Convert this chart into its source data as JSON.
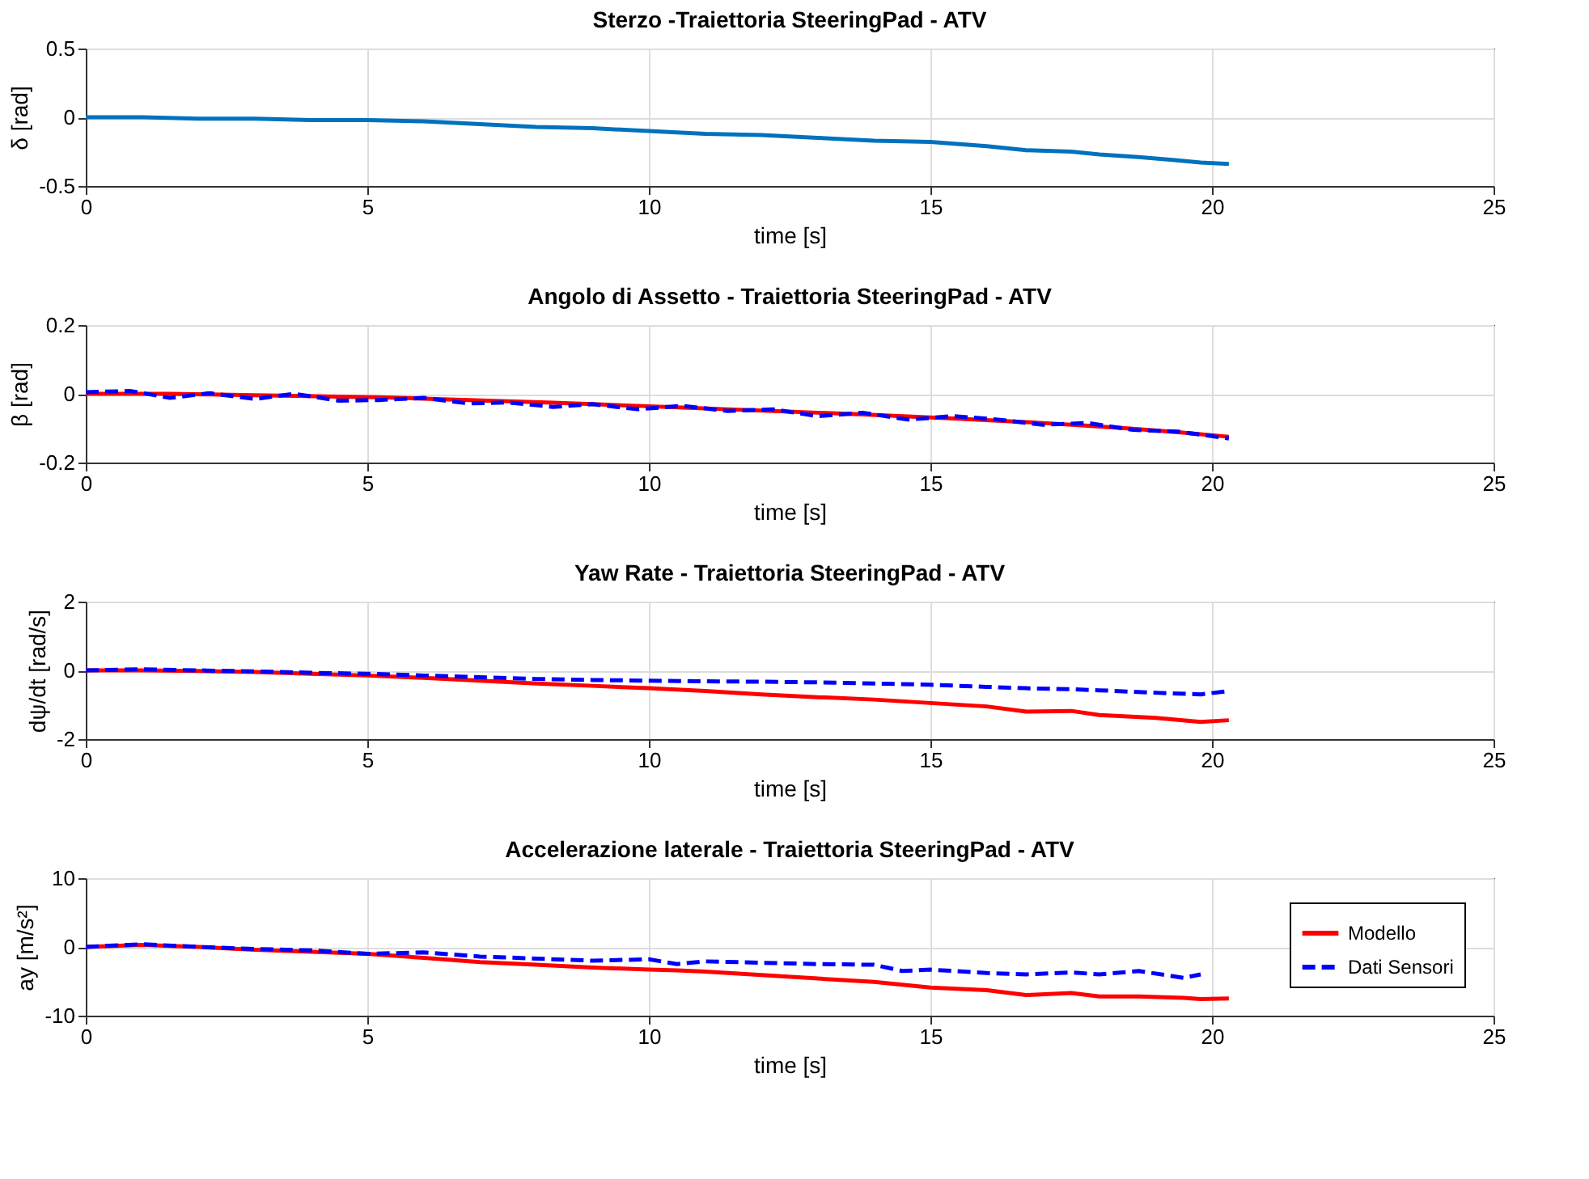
{
  "chart_data": [
    {
      "type": "line",
      "title": "Sterzo -Traiettoria SteeringPad - ATV",
      "xlabel": "time [s]",
      "ylabel": "δ [rad]",
      "xlim": [
        0,
        25
      ],
      "xticks": [
        0,
        5,
        10,
        15,
        20,
        25
      ],
      "ylim": [
        -0.5,
        0.5
      ],
      "yticks": [
        -0.5,
        0,
        0.5
      ],
      "grid": true,
      "x": [
        0,
        1,
        2,
        3,
        4,
        5,
        6,
        7,
        8,
        9,
        10,
        11,
        12,
        13,
        14,
        15,
        16,
        16.7,
        17.5,
        18,
        18.7,
        19.3,
        19.8,
        20.3
      ],
      "series": [
        {
          "color": "#0072bd",
          "line_style": "solid",
          "values": [
            0,
            0,
            -0.01,
            -0.01,
            -0.02,
            -0.02,
            -0.03,
            -0.05,
            -0.07,
            -0.08,
            -0.1,
            -0.12,
            -0.13,
            -0.15,
            -0.17,
            -0.18,
            -0.21,
            -0.24,
            -0.25,
            -0.27,
            -0.29,
            -0.31,
            -0.33,
            -0.34
          ]
        }
      ]
    },
    {
      "type": "line",
      "title": "Angolo di Assetto - Traiettoria SteeringPad - ATV",
      "xlabel": "time [s]",
      "ylabel": "β [rad]",
      "xlim": [
        0,
        25
      ],
      "xticks": [
        0,
        5,
        10,
        15,
        20,
        25
      ],
      "ylim": [
        -0.2,
        0.2
      ],
      "yticks": [
        -0.2,
        0,
        0.2
      ],
      "grid": true,
      "x": [
        0,
        0.8,
        1.5,
        2.2,
        3,
        3.7,
        4.5,
        5.2,
        6,
        6.8,
        7.5,
        8.3,
        9,
        9.8,
        10.6,
        11.4,
        12.2,
        13,
        13.8,
        14.6,
        15.4,
        16.2,
        17,
        17.8,
        18.6,
        19.4,
        20.3
      ],
      "series": [
        {
          "color": "#ff0000",
          "line_style": "solid",
          "values": [
            0,
            0,
            0,
            -0.002,
            -0.004,
            -0.006,
            -0.008,
            -0.01,
            -0.014,
            -0.018,
            -0.022,
            -0.026,
            -0.03,
            -0.035,
            -0.04,
            -0.045,
            -0.05,
            -0.055,
            -0.06,
            -0.066,
            -0.072,
            -0.078,
            -0.085,
            -0.093,
            -0.102,
            -0.112,
            -0.125
          ]
        },
        {
          "color": "#0000ff",
          "line_style": "dashed",
          "values": [
            0.005,
            0.008,
            -0.012,
            0.002,
            -0.015,
            0,
            -0.02,
            -0.018,
            -0.012,
            -0.028,
            -0.025,
            -0.038,
            -0.03,
            -0.045,
            -0.035,
            -0.05,
            -0.045,
            -0.065,
            -0.055,
            -0.075,
            -0.065,
            -0.075,
            -0.09,
            -0.085,
            -0.105,
            -0.11,
            -0.13
          ]
        }
      ]
    },
    {
      "type": "line",
      "title": "Yaw Rate - Traiettoria SteeringPad - ATV",
      "xlabel": "time [s]",
      "ylabel": "dψ/dt [rad/s]",
      "xlim": [
        0,
        25
      ],
      "xticks": [
        0,
        5,
        10,
        15,
        20,
        25
      ],
      "ylim": [
        -2,
        2
      ],
      "yticks": [
        -2,
        0,
        2
      ],
      "grid": true,
      "x": [
        0,
        1,
        2,
        3,
        4,
        5,
        6,
        7,
        8,
        9,
        10,
        11,
        12,
        13,
        14,
        15,
        16,
        16.7,
        17.5,
        18,
        19,
        19.8,
        20.3
      ],
      "series": [
        {
          "color": "#ff0000",
          "line_style": "solid",
          "values": [
            0,
            0,
            -0.02,
            -0.05,
            -0.1,
            -0.15,
            -0.22,
            -0.3,
            -0.38,
            -0.45,
            -0.52,
            -0.6,
            -0.7,
            -0.78,
            -0.85,
            -0.95,
            -1.05,
            -1.2,
            -1.18,
            -1.3,
            -1.38,
            -1.5,
            -1.45
          ]
        },
        {
          "color": "#0000ff",
          "line_style": "dashed",
          "values": [
            0,
            0.03,
            0,
            -0.03,
            -0.07,
            -0.1,
            -0.15,
            -0.2,
            -0.25,
            -0.28,
            -0.3,
            -0.32,
            -0.33,
            -0.35,
            -0.38,
            -0.42,
            -0.48,
            -0.52,
            -0.55,
            -0.58,
            -0.65,
            -0.7,
            -0.6
          ]
        }
      ]
    },
    {
      "type": "line",
      "title": "Accelerazione laterale - Traiettoria SteeringPad - ATV",
      "xlabel": "time [s]",
      "ylabel": "ay [m/s²]",
      "xlim": [
        0,
        25
      ],
      "xticks": [
        0,
        5,
        10,
        15,
        20,
        25
      ],
      "ylim": [
        -10,
        10
      ],
      "yticks": [
        -10,
        0,
        10
      ],
      "grid": true,
      "legend": "bottom right",
      "x": [
        0,
        1,
        2,
        3,
        4,
        5,
        6,
        7,
        8,
        9,
        10,
        10.5,
        11,
        12,
        13,
        14,
        14.5,
        15,
        16,
        16.7,
        17.5,
        18,
        18.7,
        19.5,
        19.8,
        20.3
      ],
      "series": [
        {
          "name": "Modello",
          "color": "#ff0000",
          "line_style": "solid",
          "values": [
            0,
            0.3,
            0,
            -0.4,
            -0.7,
            -1,
            -1.6,
            -2.2,
            -2.6,
            -3,
            -3.3,
            -3.4,
            -3.6,
            -4.1,
            -4.6,
            -5.1,
            -5.5,
            -5.9,
            -6.3,
            -7,
            -6.7,
            -7.2,
            -7.2,
            -7.4,
            -7.6,
            -7.5
          ]
        },
        {
          "name": "Dati Sensori",
          "color": "#0000ff",
          "line_style": "dashed",
          "values": [
            0,
            0.4,
            0,
            -0.3,
            -0.5,
            -1,
            -0.8,
            -1.4,
            -1.7,
            -2,
            -1.8,
            -2.5,
            -2.1,
            -2.3,
            -2.5,
            -2.6,
            -3.5,
            -3.3,
            -3.8,
            -4,
            -3.7,
            -4,
            -3.5,
            -4.5,
            -4,
            null
          ]
        }
      ]
    }
  ]
}
